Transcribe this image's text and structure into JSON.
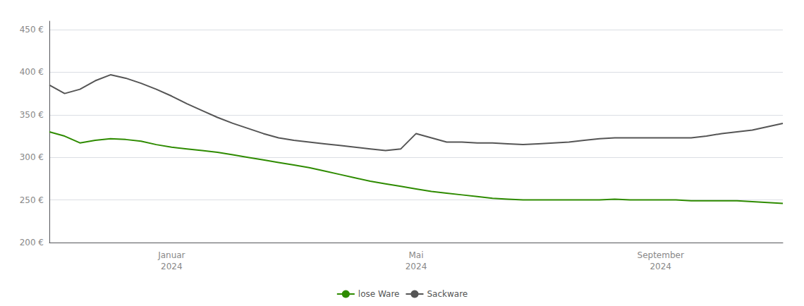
{
  "chart_data": {
    "type": "line",
    "categories": [
      null,
      null,
      null,
      null,
      null,
      null,
      null,
      null,
      "Januar\n2024",
      null,
      null,
      null,
      null,
      null,
      null,
      null,
      null,
      null,
      null,
      null,
      null,
      null,
      null,
      null,
      "Mai\n2024",
      null,
      null,
      null,
      null,
      null,
      null,
      null,
      null,
      null,
      null,
      null,
      null,
      null,
      null,
      null,
      "September\n2024",
      null,
      null,
      null,
      null,
      null,
      null,
      null,
      null
    ],
    "series": [
      {
        "name": "lose Ware",
        "color": "#2e8b00",
        "values": [
          330,
          325,
          317,
          320,
          322,
          321,
          319,
          315,
          312,
          310,
          308,
          306,
          303,
          300,
          297,
          294,
          291,
          288,
          284,
          280,
          276,
          272,
          269,
          266,
          263,
          260,
          258,
          256,
          254,
          252,
          251,
          250,
          250,
          250,
          250,
          250,
          250,
          251,
          250,
          250,
          250,
          250,
          249,
          249,
          249,
          249,
          248,
          247,
          246
        ]
      },
      {
        "name": "Sackware",
        "color": "#555555",
        "values": [
          385,
          375,
          380,
          390,
          397,
          393,
          387,
          380,
          372,
          363,
          355,
          347,
          340,
          334,
          328,
          323,
          320,
          318,
          316,
          314,
          312,
          310,
          308,
          310,
          328,
          323,
          318,
          318,
          317,
          317,
          316,
          315,
          316,
          317,
          318,
          320,
          322,
          323,
          323,
          323,
          323,
          323,
          323,
          325,
          328,
          330,
          332,
          336,
          340
        ]
      }
    ],
    "ylim": [
      200,
      460
    ],
    "yticks": [
      {
        "value": 200,
        "label": "200 €"
      },
      {
        "value": 250,
        "label": "250 €"
      },
      {
        "value": 300,
        "label": "300 €"
      },
      {
        "value": 350,
        "label": "350 €"
      },
      {
        "value": 400,
        "label": "400 €"
      },
      {
        "value": 450,
        "label": "450 €"
      }
    ],
    "grid": true,
    "legend": "bottom"
  }
}
